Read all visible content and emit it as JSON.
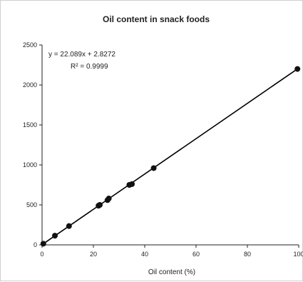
{
  "chart_data": {
    "type": "scatter",
    "title": "Oil content in snack foods",
    "xlabel": "Oil content (%)",
    "ylabel": "",
    "xlim": [
      0,
      100
    ],
    "ylim": [
      0,
      2500
    ],
    "x_ticks": [
      "0",
      "20",
      "40",
      "60",
      "80",
      "100"
    ],
    "y_ticks": [
      "0",
      "500",
      "1000",
      "1500",
      "2000",
      "2500"
    ],
    "grid": false,
    "points": [
      {
        "x": 0.5,
        "y": 15
      },
      {
        "x": 5,
        "y": 115
      },
      {
        "x": 10.5,
        "y": 235
      },
      {
        "x": 22,
        "y": 490
      },
      {
        "x": 22.5,
        "y": 500
      },
      {
        "x": 25.5,
        "y": 560
      },
      {
        "x": 26,
        "y": 580
      },
      {
        "x": 34,
        "y": 750
      },
      {
        "x": 35,
        "y": 760
      },
      {
        "x": 43.5,
        "y": 960
      },
      {
        "x": 99.5,
        "y": 2200
      }
    ],
    "trendline": {
      "slope": 22.089,
      "intercept": 2.8272
    },
    "equation": "y = 22.089x + 2.8272",
    "r_squared": "R² = 0.9999"
  }
}
